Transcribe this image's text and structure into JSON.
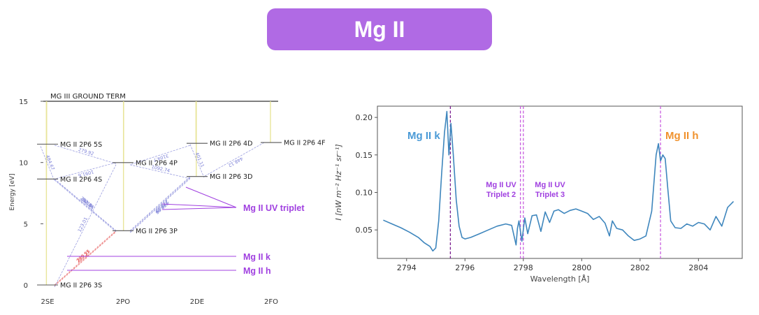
{
  "title": "Mg II",
  "chart_data": [
    {
      "type": "diagram",
      "ylabel": "Energy [eV]",
      "ylim": [
        0,
        15
      ],
      "yticks": [
        "0",
        "5",
        "10",
        "15"
      ],
      "categories": [
        "2SE",
        "2PO",
        "2DE",
        "2FO"
      ],
      "top_term": "MG III GROUND TERM",
      "levels": [
        {
          "label": "MG II 2P6 3S",
          "col": 0,
          "energy": 0.0
        },
        {
          "label": "MG II 2P6 3P",
          "col": 1,
          "energy": 4.43
        },
        {
          "label": "MG II 2P6 4S",
          "col": 0,
          "energy": 8.65
        },
        {
          "label": "MG II 2P6 3D",
          "col": 2,
          "energy": 8.86
        },
        {
          "label": "MG II 2P6 4P",
          "col": 1,
          "energy": 9.99
        },
        {
          "label": "MG II 2P6 5S",
          "col": 0,
          "energy": 11.5
        },
        {
          "label": "MG II 2P6 4D",
          "col": 2,
          "energy": 11.57
        },
        {
          "label": "MG II 2P6 4F",
          "col": 3,
          "energy": 11.63
        }
      ],
      "transitions": [
        {
          "from": 0,
          "to": 1,
          "label": "279.55",
          "color": "#e23b3b"
        },
        {
          "from": 0,
          "to": 1,
          "label": "280.27",
          "color": "#e23b3b"
        },
        {
          "from": 0,
          "to": 4,
          "label": "123.01",
          "color": "#7b7fd6"
        },
        {
          "from": 2,
          "to": 1,
          "label": "292.86",
          "color": "#7b7fd6"
        },
        {
          "from": 2,
          "to": 1,
          "label": "293.65",
          "color": "#7b7fd6"
        },
        {
          "from": 3,
          "to": 1,
          "label": "279.08",
          "color": "#7b7fd6"
        },
        {
          "from": 3,
          "to": 1,
          "label": "279.80",
          "color": "#7b7fd6"
        },
        {
          "from": 3,
          "to": 1,
          "label": "279.79",
          "color": "#7b7fd6"
        },
        {
          "from": 4,
          "to": 3,
          "label": "1092.74",
          "color": "#7b7fd6"
        },
        {
          "from": 4,
          "to": 2,
          "label": "1091.6",
          "color": "#7b7fd6"
        },
        {
          "from": 5,
          "to": 4,
          "label": "279.92",
          "color": "#7b7fd6"
        },
        {
          "from": 6,
          "to": 4,
          "label": "3104.7",
          "color": "#7b7fd6"
        },
        {
          "from": 7,
          "to": 3,
          "label": "448.12",
          "color": "#7b7fd6"
        },
        {
          "from": 6,
          "to": 3,
          "label": "401.11",
          "color": "#7b7fd6"
        },
        {
          "from": 5,
          "to": 2,
          "label": "484.67",
          "color": "#7b7fd6"
        },
        {
          "from": 2,
          "to": 1,
          "label": "2218",
          "color": "#7b7fd6"
        }
      ],
      "annotations": [
        {
          "text": "Mg II UV triplet",
          "color": "#a040e0"
        },
        {
          "text": "Mg II k",
          "color": "#a040e0"
        },
        {
          "text": "Mg II h",
          "color": "#a040e0"
        }
      ]
    },
    {
      "type": "line",
      "xlabel": "Wavelength [Å]",
      "ylabel": "I [nW m⁻² Hz⁻¹ sr⁻¹]",
      "xlim": [
        2793,
        2805.5
      ],
      "ylim": [
        0.012,
        0.215
      ],
      "xticks": [
        2794,
        2796,
        2798,
        2800,
        2802,
        2804
      ],
      "yticks": [
        0.05,
        0.1,
        0.15,
        0.2
      ],
      "xtick_labels": [
        "2794",
        "2796",
        "2798",
        "2800",
        "2802",
        "2804"
      ],
      "ytick_labels": [
        "0.05",
        "0.10",
        "0.15",
        "0.20"
      ],
      "series": [
        {
          "color": "#3e86bd",
          "x": [
            2793.2,
            2793.5,
            2793.8,
            2794.1,
            2794.4,
            2794.6,
            2794.8,
            2794.9,
            2795.0,
            2795.1,
            2795.2,
            2795.3,
            2795.38,
            2795.45,
            2795.52,
            2795.6,
            2795.7,
            2795.8,
            2795.9,
            2796.0,
            2796.2,
            2796.5,
            2796.8,
            2797.1,
            2797.4,
            2797.6,
            2797.75,
            2797.8,
            2797.85,
            2797.95,
            2798.05,
            2798.15,
            2798.3,
            2798.45,
            2798.6,
            2798.75,
            2798.9,
            2799.05,
            2799.2,
            2799.4,
            2799.6,
            2799.8,
            2800.0,
            2800.2,
            2800.4,
            2800.6,
            2800.8,
            2800.95,
            2801.05,
            2801.2,
            2801.4,
            2801.6,
            2801.8,
            2802.0,
            2802.2,
            2802.4,
            2802.55,
            2802.63,
            2802.7,
            2802.78,
            2802.86,
            2802.95,
            2803.05,
            2803.2,
            2803.4,
            2803.6,
            2803.8,
            2804.0,
            2804.2,
            2804.4,
            2804.6,
            2804.8,
            2805.0,
            2805.2
          ],
          "y": [
            0.063,
            0.058,
            0.053,
            0.047,
            0.04,
            0.033,
            0.028,
            0.022,
            0.026,
            0.062,
            0.125,
            0.18,
            0.208,
            0.15,
            0.192,
            0.15,
            0.09,
            0.055,
            0.04,
            0.038,
            0.04,
            0.045,
            0.05,
            0.055,
            0.058,
            0.056,
            0.03,
            0.052,
            0.062,
            0.035,
            0.066,
            0.045,
            0.069,
            0.07,
            0.048,
            0.074,
            0.06,
            0.075,
            0.077,
            0.072,
            0.076,
            0.078,
            0.075,
            0.072,
            0.064,
            0.068,
            0.059,
            0.042,
            0.062,
            0.052,
            0.05,
            0.042,
            0.036,
            0.038,
            0.042,
            0.075,
            0.15,
            0.165,
            0.142,
            0.15,
            0.145,
            0.105,
            0.062,
            0.053,
            0.052,
            0.058,
            0.055,
            0.06,
            0.058,
            0.05,
            0.068,
            0.055,
            0.08,
            0.088
          ]
        }
      ],
      "vlines": [
        {
          "x": 2795.5,
          "color": "#7a1d8f"
        },
        {
          "x": 2797.9,
          "color": "#c85ee0"
        },
        {
          "x": 2798.0,
          "color": "#c85ee0"
        },
        {
          "x": 2802.7,
          "color": "#c85ee0"
        }
      ],
      "annotations": [
        {
          "text": "Mg II k",
          "color": "#4a9ad6"
        },
        {
          "text": "Mg II UV",
          "text2": "Triplet 2",
          "color": "#a040e0"
        },
        {
          "text": "Mg II UV",
          "text2": "Triplet 3",
          "color": "#a040e0"
        },
        {
          "text": "Mg II h",
          "color": "#f0922e"
        }
      ]
    }
  ]
}
